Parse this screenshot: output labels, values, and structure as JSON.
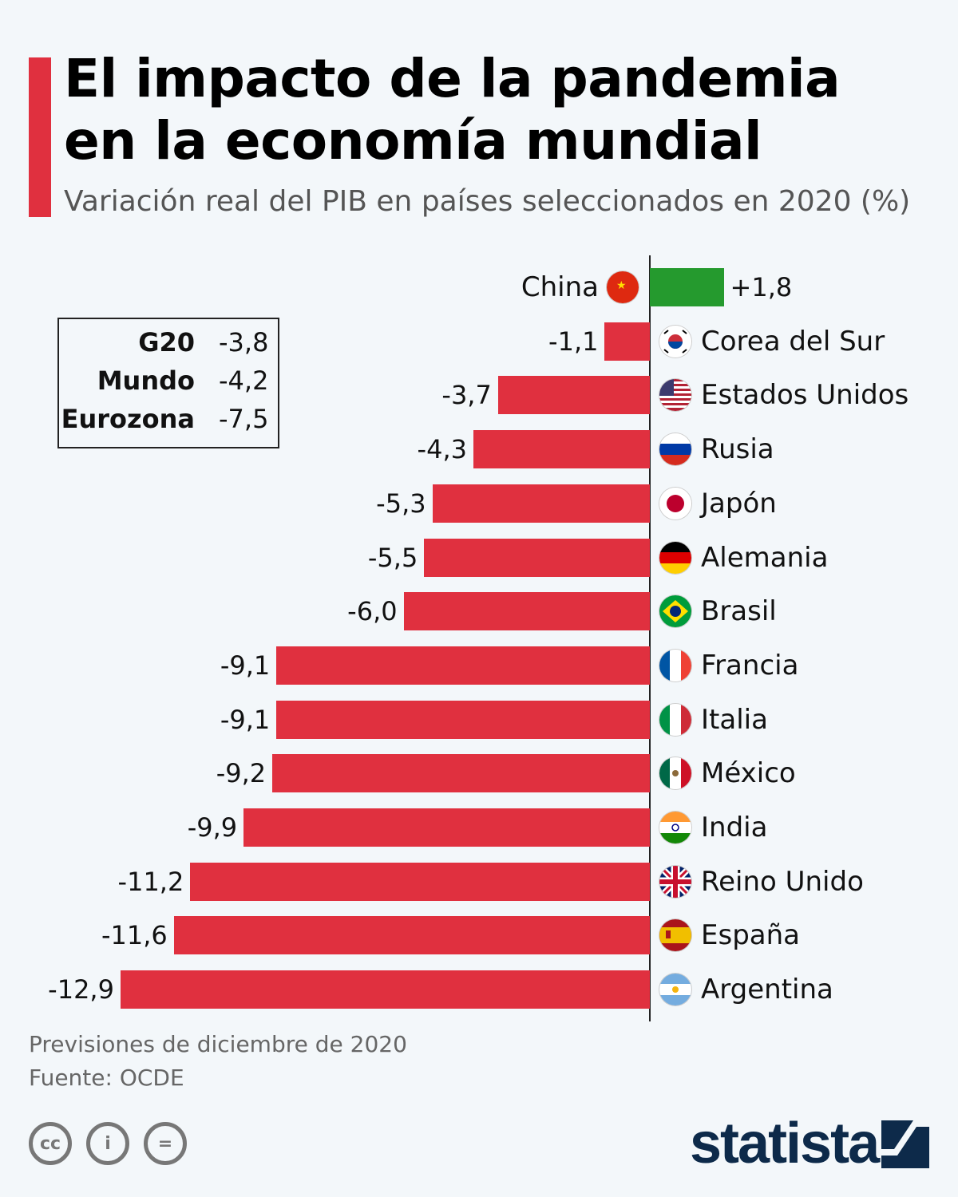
{
  "title_line1": "El impacto de la pandemia",
  "title_line2": "en la economía mundial",
  "subtitle": "Variación real del PIB en países seleccionados en 2020 (%)",
  "summary_box": [
    {
      "label": "G20",
      "value": "-3,8"
    },
    {
      "label": "Mundo",
      "value": "-4,2"
    },
    {
      "label": "Eurozona",
      "value": "-7,5"
    }
  ],
  "chart_data": {
    "type": "bar",
    "orientation": "horizontal",
    "title": "El impacto de la pandemia en la economía mundial",
    "subtitle": "Variación real del PIB en países seleccionados en 2020 (%)",
    "categories": [
      "China",
      "Corea del Sur",
      "Estados Unidos",
      "Rusia",
      "Japón",
      "Alemania",
      "Brasil",
      "Francia",
      "Italia",
      "México",
      "India",
      "Reino Unido",
      "España",
      "Argentina"
    ],
    "values": [
      1.8,
      -1.1,
      -3.7,
      -4.3,
      -5.3,
      -5.5,
      -6.0,
      -9.1,
      -9.1,
      -9.2,
      -9.9,
      -11.2,
      -11.6,
      -12.9
    ],
    "labels": [
      "+1,8",
      "-1,1",
      "-3,7",
      "-4,3",
      "-5,3",
      "-5,5",
      "-6,0",
      "-9,1",
      "-9,1",
      "-9,2",
      "-9,9",
      "-11,2",
      "-11,6",
      "-12,9"
    ],
    "flags": [
      "china",
      "south-korea",
      "usa",
      "russia",
      "japan",
      "germany",
      "brazil",
      "france",
      "italy",
      "mexico",
      "india",
      "uk",
      "spain",
      "argentina"
    ],
    "colors": {
      "positive": "#259a2e",
      "negative": "#e0303f"
    },
    "xlim": [
      -12.9,
      1.8
    ],
    "grid": false
  },
  "footer": {
    "note": "Previsiones de diciembre de 2020",
    "source": "Fuente: OCDE"
  },
  "license_icons": [
    "cc",
    "by",
    "nd"
  ],
  "license_text": {
    "cc": "cc",
    "by": "i",
    "nd": "="
  },
  "brand": "statista"
}
